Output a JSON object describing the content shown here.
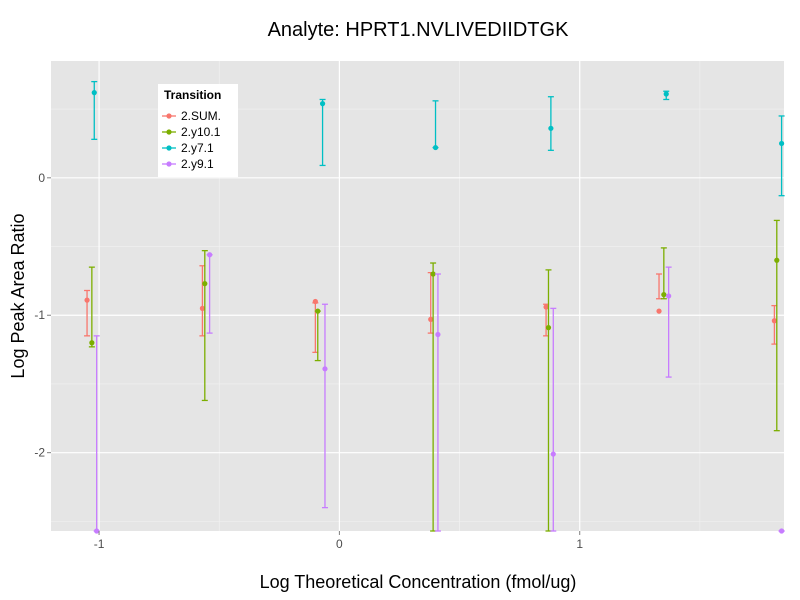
{
  "chart_data": {
    "type": "scatter",
    "title": "Analyte: HPRT1.NVLIVEDIIDTGK",
    "xlabel": "Log Theoretical Concentration (fmol/ug)",
    "ylabel": "Log Peak Area Ratio",
    "xlim": [
      -1.2,
      1.85
    ],
    "ylim": [
      -2.57,
      0.85
    ],
    "x_ticks": [
      -1,
      0,
      1
    ],
    "x_tick_labels": [
      "-1",
      "0",
      "1"
    ],
    "y_ticks": [
      0,
      -1,
      -2
    ],
    "y_tick_labels": [
      "0",
      "-1",
      "-2"
    ],
    "grid": true,
    "legend": {
      "title": "Transition",
      "position": "top-left"
    },
    "series": [
      {
        "name": "2.SUM.",
        "color": "#f8766d",
        "points": [
          {
            "x": -1.05,
            "y": -0.89,
            "ymin": -1.15,
            "ymax": -0.82
          },
          {
            "x": -0.57,
            "y": -0.95,
            "ymin": -1.15,
            "ymax": -0.64
          },
          {
            "x": -0.1,
            "y": -0.9,
            "ymin": -1.27,
            "ymax": -0.91
          },
          {
            "x": 0.38,
            "y": -1.03,
            "ymin": -1.13,
            "ymax": -0.69
          },
          {
            "x": 0.86,
            "y": -0.94,
            "ymin": -1.15,
            "ymax": -0.92
          },
          {
            "x": 1.33,
            "y": -0.97,
            "ymin": -0.88,
            "ymax": -0.7
          },
          {
            "x": 1.81,
            "y": -1.04,
            "ymin": -1.21,
            "ymax": -0.93
          }
        ]
      },
      {
        "name": "2.y10.1",
        "color": "#7cae00",
        "points": [
          {
            "x": -1.03,
            "y": -1.2,
            "ymin": -1.23,
            "ymax": -0.65
          },
          {
            "x": -0.56,
            "y": -0.77,
            "ymin": -1.62,
            "ymax": -0.53
          },
          {
            "x": -0.09,
            "y": -0.97,
            "ymin": -1.33,
            "ymax": -0.97
          },
          {
            "x": 0.39,
            "y": -0.7,
            "ymin": -2.57,
            "ymax": -0.62
          },
          {
            "x": 0.87,
            "y": -1.09,
            "ymin": -2.57,
            "ymax": -0.67
          },
          {
            "x": 1.35,
            "y": -0.85,
            "ymin": -0.88,
            "ymax": -0.51
          },
          {
            "x": 1.82,
            "y": -0.6,
            "ymin": -1.84,
            "ymax": -0.31
          }
        ]
      },
      {
        "name": "2.y7.1",
        "color": "#00bfc4",
        "points": [
          {
            "x": -1.02,
            "y": 0.62,
            "ymin": 0.28,
            "ymax": 0.7
          },
          {
            "x": -0.07,
            "y": 0.54,
            "ymin": 0.09,
            "ymax": 0.57
          },
          {
            "x": 0.4,
            "y": 0.22,
            "ymin": 0.22,
            "ymax": 0.56
          },
          {
            "x": 0.88,
            "y": 0.36,
            "ymin": 0.2,
            "ymax": 0.59
          },
          {
            "x": 1.36,
            "y": 0.61,
            "ymin": 0.57,
            "ymax": 0.63
          },
          {
            "x": 1.84,
            "y": 0.25,
            "ymin": -0.13,
            "ymax": 0.45
          }
        ]
      },
      {
        "name": "2.y9.1",
        "color": "#c77cff",
        "points": [
          {
            "x": -1.01,
            "y": -2.57,
            "ymin": -2.57,
            "ymax": -1.15
          },
          {
            "x": -0.54,
            "y": -0.56,
            "ymin": -1.13,
            "ymax": -0.56
          },
          {
            "x": -0.06,
            "y": -1.39,
            "ymin": -2.4,
            "ymax": -0.92
          },
          {
            "x": 0.41,
            "y": -1.14,
            "ymin": -2.57,
            "ymax": -0.7
          },
          {
            "x": 0.89,
            "y": -2.01,
            "ymin": -2.57,
            "ymax": -0.95
          },
          {
            "x": 1.37,
            "y": -0.86,
            "ymin": -1.45,
            "ymax": -0.65
          },
          {
            "x": 1.84,
            "y": -2.57,
            "ymin": -2.57,
            "ymax": -2.57
          }
        ]
      }
    ]
  }
}
